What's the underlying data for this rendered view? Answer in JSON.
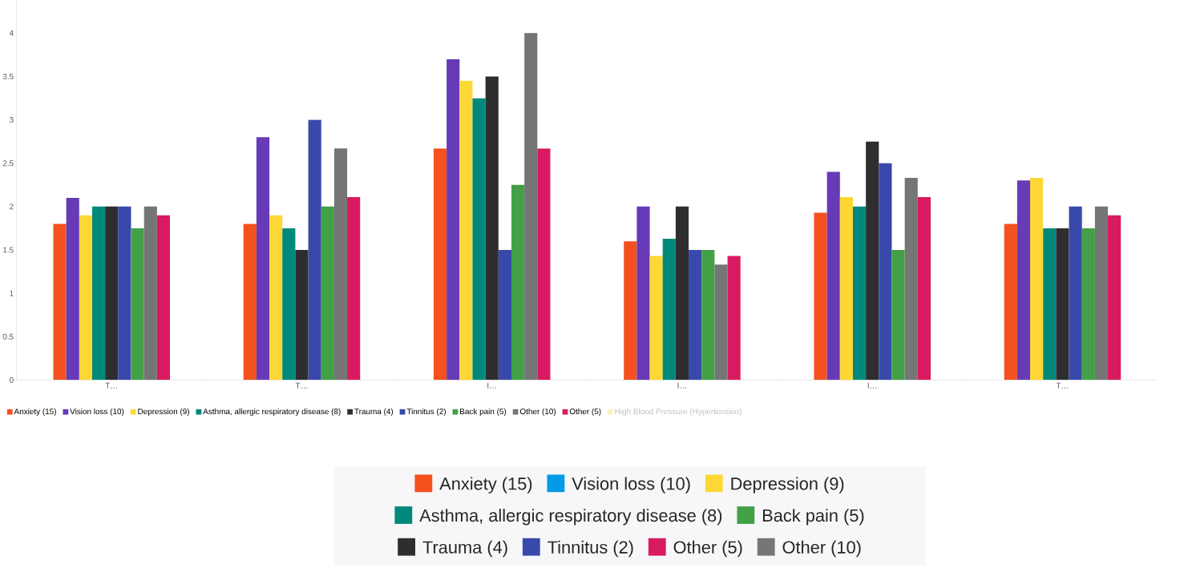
{
  "chart_data": [
    {
      "type": "bar",
      "categories": [
        "T…",
        "T…",
        "I…",
        "I…",
        "I…",
        "T…"
      ],
      "series": [
        {
          "name": "Anxiety (15)",
          "color": "#f4511e",
          "values": [
            1.8,
            1.8,
            2.67,
            1.6,
            1.93,
            1.8
          ]
        },
        {
          "name": "Vision loss (10)",
          "color": "#673ab7",
          "values": [
            2.1,
            2.8,
            3.7,
            2.0,
            2.4,
            2.3
          ]
        },
        {
          "name": "Depression (9)",
          "color": "#fdd835",
          "values": [
            1.9,
            1.9,
            3.45,
            1.43,
            2.11,
            2.33
          ]
        },
        {
          "name": "Asthma, allergic respiratory disease (8)",
          "color": "#00897b",
          "values": [
            2.0,
            1.75,
            3.25,
            1.63,
            2.0,
            1.75
          ]
        },
        {
          "name": "Trauma (4)",
          "color": "#2e2e2e",
          "values": [
            2.0,
            1.5,
            3.5,
            2.0,
            2.75,
            1.75
          ]
        },
        {
          "name": "Tinnitus (2)",
          "color": "#3949ab",
          "values": [
            2.0,
            3.0,
            1.5,
            1.5,
            2.5,
            2.0
          ]
        },
        {
          "name": "Back pain (5)",
          "color": "#43a047",
          "values": [
            1.75,
            2.0,
            2.25,
            1.5,
            1.5,
            1.75
          ]
        },
        {
          "name": "Other (10)",
          "color": "#757575",
          "values": [
            2.0,
            2.67,
            4.0,
            1.33,
            2.33,
            2.0
          ]
        },
        {
          "name": "Other (5)",
          "color": "#d81b60",
          "values": [
            1.9,
            2.11,
            2.67,
            1.43,
            2.11,
            1.9
          ]
        },
        {
          "name": "High Blood Pressure (Hypertension)",
          "color": "#fdf0c0",
          "values": [
            null,
            null,
            null,
            null,
            null,
            null
          ]
        }
      ],
      "ylim": [
        0,
        4.38
      ],
      "yticks": [
        0,
        0.5,
        1,
        1.5,
        2,
        2.5,
        3,
        3.5,
        4
      ],
      "grid": false,
      "legend": "bottom"
    },
    {
      "type": "other",
      "categories": [
        "Anxiety (15)",
        "Vision loss (10)",
        "Depression (9)",
        "Asthma, allergic respiratory disease (8)",
        "Back pain (5)",
        "Trauma (4)",
        "Tinnitus (2)",
        "Other (5)",
        "Other (10)"
      ],
      "colors": [
        "#f4511e",
        "#039be5",
        "#fdd835",
        "#00897b",
        "#43a047",
        "#2e2e2e",
        "#3949ab",
        "#d81b60",
        "#757575"
      ]
    }
  ]
}
